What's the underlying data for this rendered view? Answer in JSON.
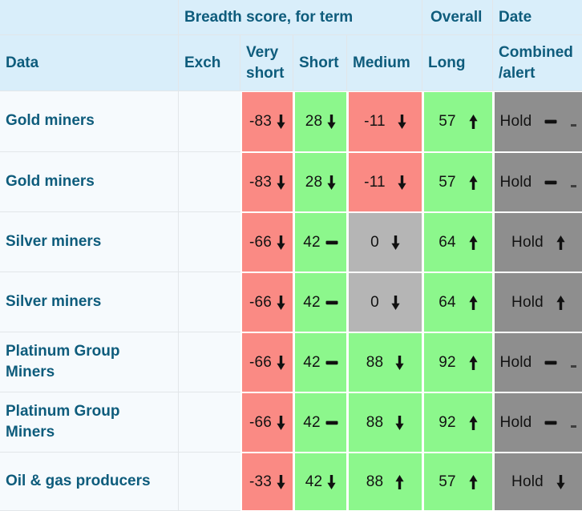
{
  "colors": {
    "header_bg": "#d9eefa",
    "body_bg": "#f6fafd",
    "teal": "#0e5c7c",
    "red": "#fa8a84",
    "green": "#8cf78c",
    "silver": "#b5b5b5",
    "gray": "#8e8e8e",
    "line": "#e2e6e9",
    "gap": "#ffffff",
    "ink": "#121212"
  },
  "header": {
    "group": {
      "breadth": "Breadth score, for term",
      "overall": "Overall",
      "date": "Date"
    },
    "columns": {
      "data": "Data",
      "exch": "Exch",
      "very_short": "Very\nshort",
      "short": "Short",
      "medium": "Medium",
      "long": "Long",
      "combined": "Combined\n/alert"
    }
  },
  "icon_names": [
    "up-arrow",
    "down-arrow",
    "minus",
    "small-dash"
  ],
  "rows": [
    {
      "name": "Gold miners",
      "exch": "",
      "cells": {
        "very_short": {
          "value": "-83",
          "icon": "down",
          "bg": "red"
        },
        "short": {
          "value": "28",
          "icon": "down",
          "bg": "green"
        },
        "medium": {
          "value": "-11",
          "icon": "down",
          "bg": "red"
        },
        "long": {
          "value": "57",
          "icon": "up",
          "bg": "green"
        },
        "combined": {
          "value": "Hold",
          "icon": "minus-dash",
          "bg": "gray"
        }
      }
    },
    {
      "name": "Gold miners",
      "exch": "",
      "cells": {
        "very_short": {
          "value": "-83",
          "icon": "down",
          "bg": "red"
        },
        "short": {
          "value": "28",
          "icon": "down",
          "bg": "green"
        },
        "medium": {
          "value": "-11",
          "icon": "down",
          "bg": "red"
        },
        "long": {
          "value": "57",
          "icon": "up",
          "bg": "green"
        },
        "combined": {
          "value": "Hold",
          "icon": "minus-dash",
          "bg": "gray"
        }
      }
    },
    {
      "name": "Silver miners",
      "exch": "",
      "cells": {
        "very_short": {
          "value": "-66",
          "icon": "down",
          "bg": "red"
        },
        "short": {
          "value": "42",
          "icon": "minus",
          "bg": "green"
        },
        "medium": {
          "value": "0",
          "icon": "down",
          "bg": "silver"
        },
        "long": {
          "value": "64",
          "icon": "up",
          "bg": "green"
        },
        "combined": {
          "value": "Hold",
          "icon": "up",
          "bg": "gray"
        }
      }
    },
    {
      "name": "Silver miners",
      "exch": "",
      "cells": {
        "very_short": {
          "value": "-66",
          "icon": "down",
          "bg": "red"
        },
        "short": {
          "value": "42",
          "icon": "minus",
          "bg": "green"
        },
        "medium": {
          "value": "0",
          "icon": "down",
          "bg": "silver"
        },
        "long": {
          "value": "64",
          "icon": "up",
          "bg": "green"
        },
        "combined": {
          "value": "Hold",
          "icon": "up",
          "bg": "gray"
        }
      }
    },
    {
      "name": "Platinum Group\nMiners",
      "exch": "",
      "cells": {
        "very_short": {
          "value": "-66",
          "icon": "down",
          "bg": "red"
        },
        "short": {
          "value": "42",
          "icon": "minus",
          "bg": "green"
        },
        "medium": {
          "value": "88",
          "icon": "down",
          "bg": "green"
        },
        "long": {
          "value": "92",
          "icon": "up",
          "bg": "green"
        },
        "combined": {
          "value": "Hold",
          "icon": "minus-dash",
          "bg": "gray"
        }
      }
    },
    {
      "name": "Platinum Group\nMiners",
      "exch": "",
      "cells": {
        "very_short": {
          "value": "-66",
          "icon": "down",
          "bg": "red"
        },
        "short": {
          "value": "42",
          "icon": "minus",
          "bg": "green"
        },
        "medium": {
          "value": "88",
          "icon": "down",
          "bg": "green"
        },
        "long": {
          "value": "92",
          "icon": "up",
          "bg": "green"
        },
        "combined": {
          "value": "Hold",
          "icon": "minus-dash",
          "bg": "gray"
        }
      }
    },
    {
      "name": "Oil & gas producers",
      "exch": "",
      "cells": {
        "very_short": {
          "value": "-33",
          "icon": "down",
          "bg": "red"
        },
        "short": {
          "value": "42",
          "icon": "down",
          "bg": "green"
        },
        "medium": {
          "value": "88",
          "icon": "up",
          "bg": "green"
        },
        "long": {
          "value": "57",
          "icon": "up",
          "bg": "green"
        },
        "combined": {
          "value": "Hold",
          "icon": "down",
          "bg": "gray"
        }
      }
    }
  ]
}
